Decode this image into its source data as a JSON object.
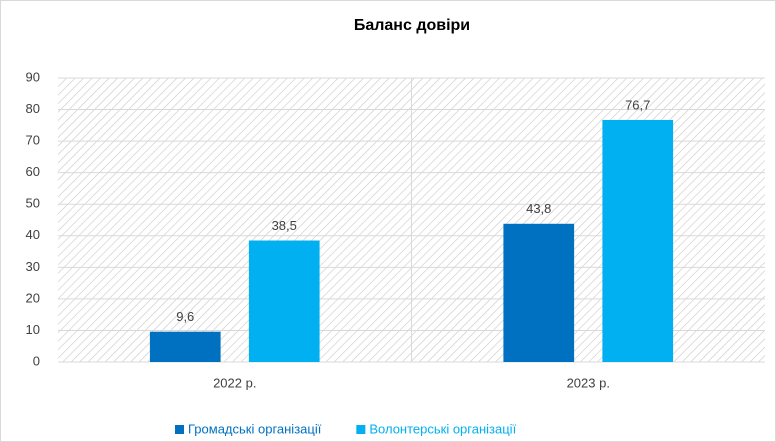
{
  "chart_data": {
    "type": "bar",
    "title": "Баланс довіри",
    "categories": [
      "2022 р.",
      "2023 р."
    ],
    "series": [
      {
        "name": "Громадські організації",
        "color": "#0070c0",
        "values": [
          9.6,
          43.8
        ],
        "value_labels": [
          "9,6",
          "43,8"
        ]
      },
      {
        "name": "Волонтерські організації",
        "color": "#00b0f0",
        "values": [
          38.5,
          76.7
        ],
        "value_labels": [
          "38,5",
          "76,7"
        ]
      }
    ],
    "ylim": [
      0,
      90
    ],
    "yticks": [
      0,
      10,
      20,
      30,
      40,
      50,
      60,
      70,
      80,
      90
    ],
    "grid": true,
    "legend": "bottom"
  }
}
